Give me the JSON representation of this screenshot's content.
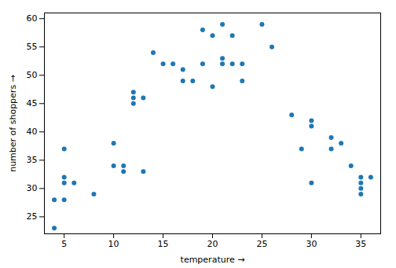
{
  "chart_data": {
    "type": "scatter",
    "xlabel": "temperature",
    "ylabel": "number of shoppers",
    "x": [
      4,
      4,
      5,
      5,
      5,
      5,
      6,
      8,
      10,
      10,
      11,
      11,
      12,
      12,
      12,
      13,
      13,
      14,
      15,
      16,
      17,
      17,
      18,
      19,
      19,
      20,
      20,
      21,
      21,
      21,
      22,
      22,
      23,
      23,
      25,
      26,
      28,
      29,
      30,
      30,
      30,
      32,
      32,
      33,
      34,
      35,
      35,
      35,
      35,
      36
    ],
    "values": [
      23,
      28,
      28,
      31,
      32,
      37,
      31,
      29,
      34,
      38,
      33,
      34,
      45,
      46,
      47,
      46,
      33,
      54,
      52,
      52,
      49,
      51,
      49,
      52,
      58,
      57,
      48,
      52,
      53,
      59,
      52,
      57,
      49,
      52,
      59,
      55,
      43,
      37,
      31,
      41,
      42,
      37,
      39,
      38,
      34,
      29,
      30,
      31,
      32,
      32
    ],
    "color": "#1f77b4",
    "xlim": [
      3,
      37
    ],
    "ylim": [
      22,
      61
    ],
    "xticks": [
      5,
      10,
      15,
      20,
      25,
      30,
      35
    ],
    "yticks": [
      25,
      30,
      35,
      40,
      45,
      50,
      55,
      60
    ]
  }
}
